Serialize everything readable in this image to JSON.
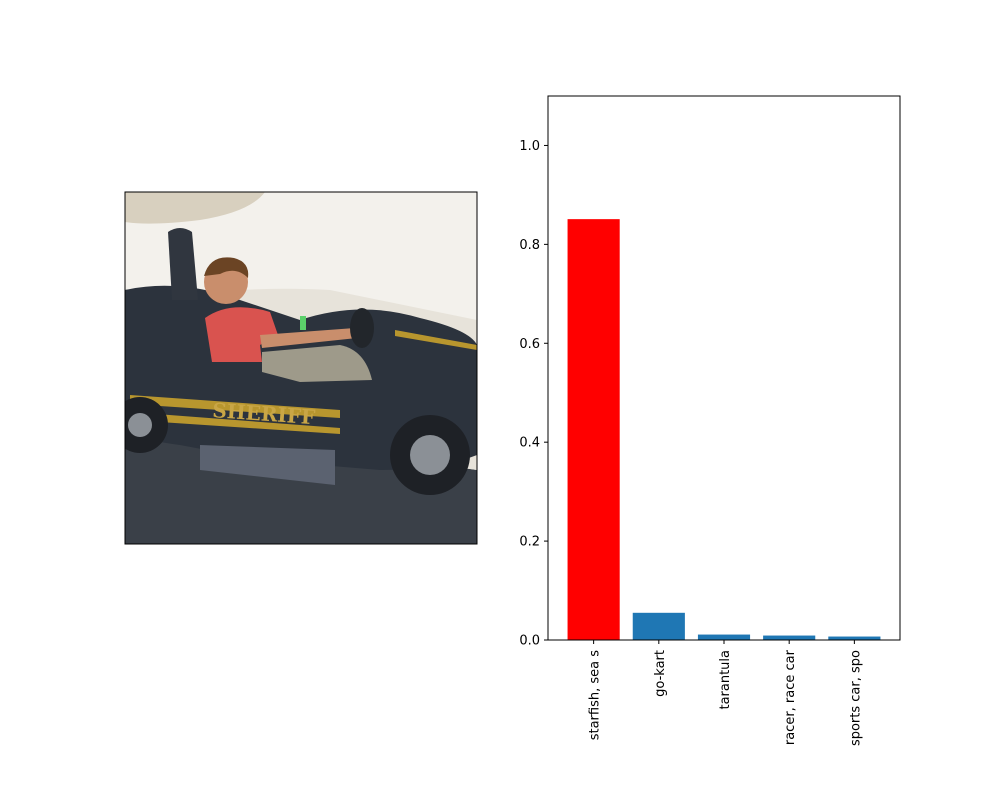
{
  "image_panel": {
    "subject": "boy-driving-go-kart",
    "kart_lettering": "SHERIFF"
  },
  "colors": {
    "highlight_bar": "#ff0000",
    "default_bar": "#1f77b4",
    "axis": "#000000",
    "kart_body": "#2c333d",
    "kart_stripe": "#b8962e",
    "shirt": "#d9534f",
    "background": "#f3f1ec"
  },
  "chart_data": {
    "type": "bar",
    "categories": [
      "starfish, sea s",
      "go-kart",
      "tarantula",
      "racer, race car",
      "sports car, spo"
    ],
    "values": [
      0.851,
      0.055,
      0.011,
      0.009,
      0.007
    ],
    "highlight_index": 0,
    "ylim": [
      0,
      1.1
    ],
    "yticks": [
      0.0,
      0.2,
      0.4,
      0.6,
      0.8,
      1.0
    ],
    "ytick_labels": [
      "0.0",
      "0.2",
      "0.4",
      "0.6",
      "0.8",
      "1.0"
    ],
    "title": "",
    "xlabel": "",
    "ylabel": "",
    "grid": false,
    "x_tick_rotation": "vertical"
  }
}
